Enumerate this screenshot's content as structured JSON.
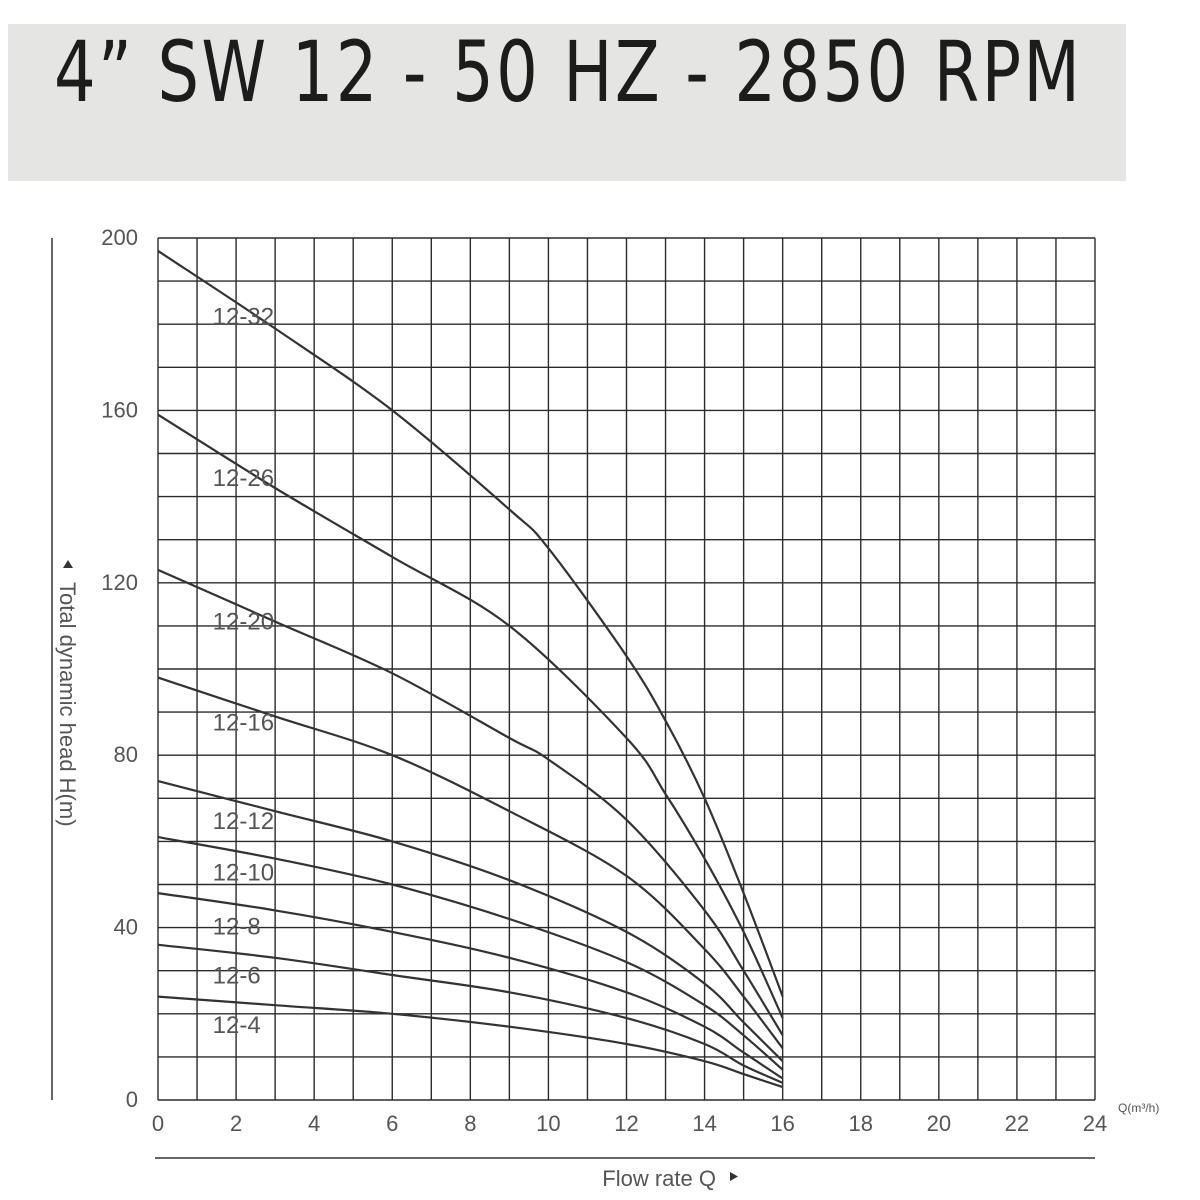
{
  "chart_data": {
    "type": "line",
    "title": "4” SW 12 - 50 HZ - 2850 RPM",
    "xlabel": "Flow rate Q",
    "xunit": "Q(m³/h)",
    "ylabel": "Total dynamic head H(m)",
    "xlim": [
      0,
      24
    ],
    "ylim": [
      0,
      200
    ],
    "x_ticks": [
      "0",
      "2",
      "4",
      "6",
      "8",
      "10",
      "12",
      "14",
      "16",
      "18",
      "20",
      "22",
      "24"
    ],
    "y_ticks": [
      "0",
      "40",
      "80",
      "120",
      "160",
      "200"
    ],
    "grid": true,
    "series": [
      {
        "name": "12-32",
        "x": [
          0,
          3,
          6,
          9,
          10,
          12,
          13,
          14,
          15,
          16
        ],
        "y": [
          197,
          179,
          160,
          137,
          128,
          103,
          88,
          70,
          48,
          24
        ]
      },
      {
        "name": "12-26",
        "x": [
          0,
          3,
          6,
          9,
          12,
          13,
          14,
          15,
          16
        ],
        "y": [
          159,
          142,
          126,
          110,
          84,
          71,
          56,
          39,
          19
        ]
      },
      {
        "name": "12-20",
        "x": [
          0,
          3,
          6,
          9,
          10,
          12,
          14,
          15,
          16
        ],
        "y": [
          123,
          111,
          99,
          84,
          79,
          65,
          44,
          30,
          15
        ]
      },
      {
        "name": "12-16",
        "x": [
          0,
          3,
          6,
          9,
          12,
          14,
          15,
          16
        ],
        "y": [
          98,
          89,
          80,
          67,
          52,
          35,
          24,
          12
        ]
      },
      {
        "name": "12-12",
        "x": [
          0,
          3,
          6,
          9,
          12,
          14,
          15,
          16
        ],
        "y": [
          74,
          67,
          60,
          51,
          39,
          27,
          18,
          9
        ]
      },
      {
        "name": "12-10",
        "x": [
          0,
          3,
          6,
          9,
          12,
          14,
          15,
          16
        ],
        "y": [
          61,
          56,
          50,
          42,
          32,
          22,
          15,
          7
        ]
      },
      {
        "name": "12-8",
        "x": [
          0,
          3,
          6,
          9,
          12,
          14,
          15,
          16
        ],
        "y": [
          48,
          44,
          39,
          33,
          25,
          17,
          11,
          5
        ]
      },
      {
        "name": "12-6",
        "x": [
          0,
          3,
          6,
          9,
          12,
          14,
          15,
          16
        ],
        "y": [
          36,
          33,
          29,
          25,
          19,
          13,
          8,
          4
        ]
      },
      {
        "name": "12-4",
        "x": [
          0,
          3,
          6,
          9,
          12,
          14,
          15,
          16
        ],
        "y": [
          24,
          22,
          20,
          17,
          13,
          9,
          6,
          3
        ]
      }
    ]
  }
}
